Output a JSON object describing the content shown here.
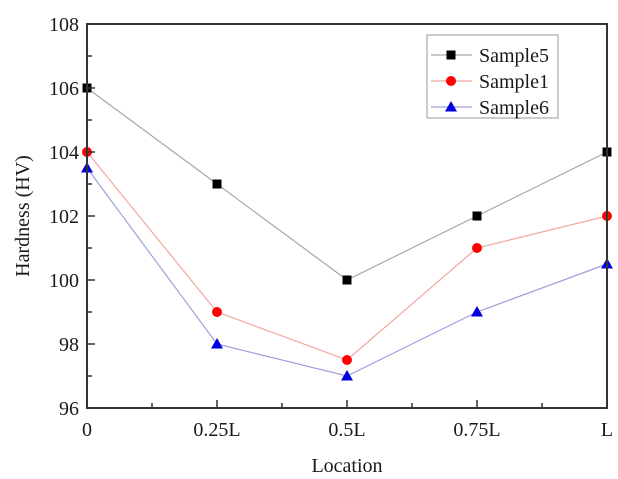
{
  "chart_data": {
    "type": "line",
    "title": "",
    "xlabel": "Location",
    "ylabel": "Hardness (HV)",
    "categories": [
      "0",
      "0.25L",
      "0.5L",
      "0.75L",
      "L"
    ],
    "x": [
      0,
      0.25,
      0.5,
      0.75,
      1.0
    ],
    "xlim": [
      0,
      1.0
    ],
    "ylim": [
      96,
      108
    ],
    "yticks": [
      96,
      98,
      100,
      102,
      104,
      106,
      108
    ],
    "yticks_minor": [
      97,
      99,
      101,
      103,
      105,
      107
    ],
    "xticks_minor": [
      0.125,
      0.375,
      0.625,
      0.875
    ],
    "grid": false,
    "legend_position": "top-right",
    "series": [
      {
        "name": "Sample5",
        "marker": "square",
        "marker_color": "#000000",
        "line_color": "#a8a8a0",
        "values": [
          106,
          103,
          100,
          102,
          104
        ]
      },
      {
        "name": "Sample1",
        "marker": "circle",
        "marker_color": "#ff0000",
        "line_color": "#f4a6a0",
        "values": [
          104,
          99,
          97.5,
          101,
          102
        ]
      },
      {
        "name": "Sample6",
        "marker": "triangle",
        "marker_color": "#0000e0",
        "line_color": "#a0a0dc",
        "values": [
          103.5,
          98,
          97,
          99,
          100.5
        ]
      }
    ]
  }
}
